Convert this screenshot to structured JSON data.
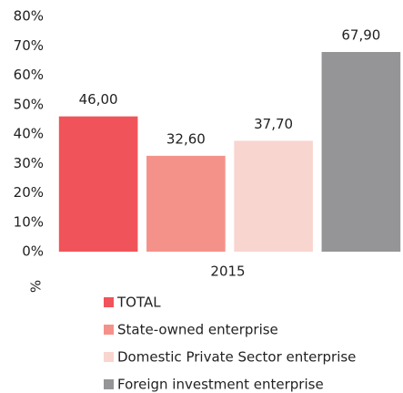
{
  "chart_data": {
    "type": "bar",
    "categories": [
      "2015"
    ],
    "y_label": "%",
    "series": [
      {
        "name": "TOTAL",
        "color": "#f0545a",
        "values": [
          46.0
        ],
        "value_labels": [
          "46,00"
        ]
      },
      {
        "name": "State-owned enterprise",
        "color": "#f4928a",
        "values": [
          32.6
        ],
        "value_labels": [
          "32,60"
        ]
      },
      {
        "name": "Domestic Private Sector enterprise",
        "color": "#f9d5cf",
        "values": [
          37.7
        ],
        "value_labels": [
          "37,70"
        ]
      },
      {
        "name": "Foreign investment enterprise",
        "color": "#959598",
        "values": [
          67.9
        ],
        "value_labels": [
          "67,90"
        ]
      }
    ],
    "ylim": [
      0,
      80
    ],
    "yticks": [
      {
        "value": 0,
        "label": "0%"
      },
      {
        "value": 10,
        "label": "10%"
      },
      {
        "value": 20,
        "label": "20%"
      },
      {
        "value": 30,
        "label": "30%"
      },
      {
        "value": 40,
        "label": "40%"
      },
      {
        "value": 50,
        "label": "50%"
      },
      {
        "value": 60,
        "label": "60%"
      },
      {
        "value": 70,
        "label": "70%"
      },
      {
        "value": 80,
        "label": "80%"
      }
    ],
    "grid": false,
    "legend": "bottom"
  }
}
